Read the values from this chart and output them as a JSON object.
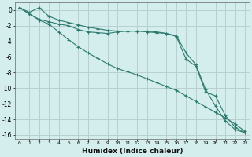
{
  "title": "",
  "xlabel": "Humidex (Indice chaleur)",
  "ylabel": "",
  "background_color": "#d4eded",
  "grid_color": "#b8d0d0",
  "line_color": "#2d7a6e",
  "marker": "+",
  "xlim": [
    -0.5,
    23.5
  ],
  "ylim": [
    -16.5,
    1.0
  ],
  "yticks": [
    0,
    -2,
    -4,
    -6,
    -8,
    -10,
    -12,
    -14,
    -16
  ],
  "xticks": [
    0,
    1,
    2,
    3,
    4,
    5,
    6,
    7,
    8,
    9,
    10,
    11,
    12,
    13,
    14,
    15,
    16,
    17,
    18,
    19,
    20,
    21,
    22,
    23
  ],
  "line1_x": [
    0,
    1,
    2,
    3,
    4,
    5,
    6,
    7,
    8,
    9,
    10,
    11,
    12,
    13,
    14,
    15,
    16,
    17,
    18,
    19,
    20,
    21,
    22,
    23
  ],
  "line1_y": [
    0.3,
    -0.3,
    0.3,
    -0.8,
    -1.3,
    -1.6,
    -1.9,
    -2.2,
    -2.4,
    -2.6,
    -2.7,
    -2.7,
    -2.7,
    -2.8,
    -2.9,
    -3.0,
    -3.3,
    -5.5,
    -7.0,
    -10.2,
    -12.3,
    -14.2,
    -15.3,
    -15.7
  ],
  "line2_x": [
    0,
    1,
    2,
    3,
    4,
    5,
    6,
    7,
    8,
    9,
    10,
    11,
    12,
    13,
    14,
    15,
    16,
    17,
    18,
    19,
    20,
    21,
    22,
    23
  ],
  "line2_y": [
    0.3,
    -0.5,
    -1.2,
    -1.5,
    -1.8,
    -2.0,
    -2.5,
    -2.8,
    -2.9,
    -3.0,
    -2.8,
    -2.7,
    -2.7,
    -2.7,
    -2.8,
    -3.0,
    -3.4,
    -6.3,
    -7.2,
    -10.5,
    -11.0,
    -13.5,
    -15.0,
    -15.7
  ],
  "line3_x": [
    0,
    1,
    2,
    3,
    4,
    5,
    6,
    7,
    8,
    9,
    10,
    11,
    12,
    13,
    14,
    15,
    16,
    17,
    18,
    19,
    20,
    21,
    22,
    23
  ],
  "line3_y": [
    0.3,
    -0.5,
    -1.3,
    -1.8,
    -2.8,
    -3.8,
    -4.7,
    -5.5,
    -6.2,
    -6.9,
    -7.5,
    -7.9,
    -8.3,
    -8.8,
    -9.3,
    -9.8,
    -10.3,
    -11.0,
    -11.7,
    -12.4,
    -13.1,
    -13.8,
    -14.6,
    -15.5
  ]
}
